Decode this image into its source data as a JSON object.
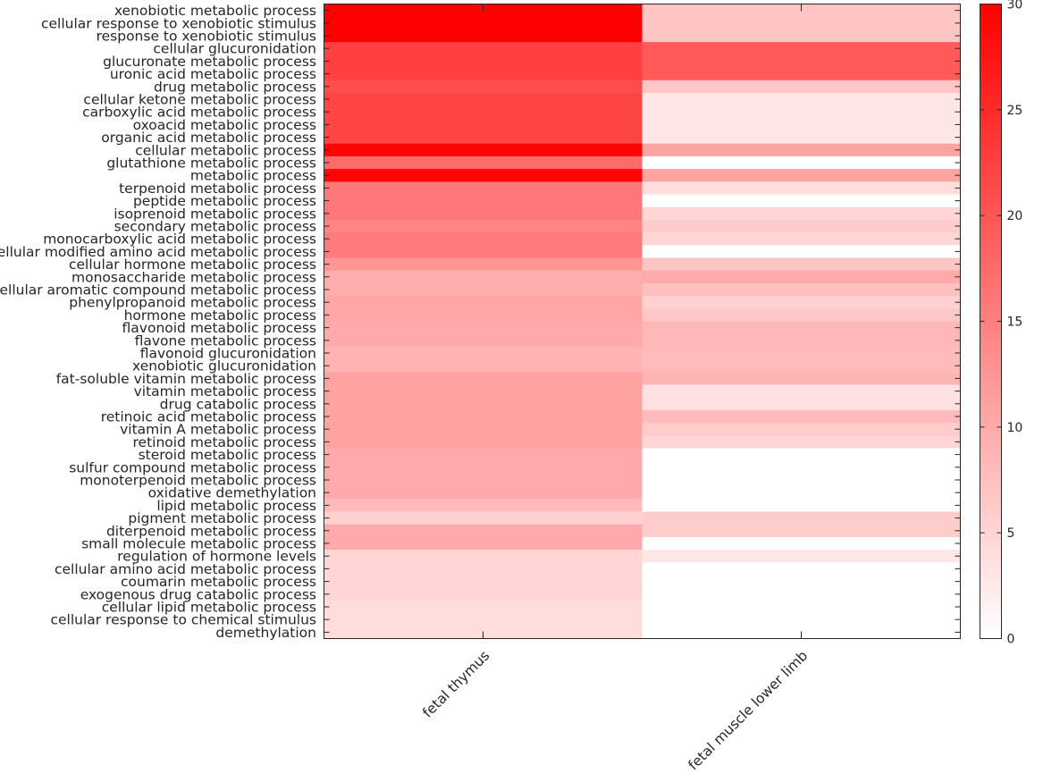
{
  "chart_data": {
    "type": "heatmap",
    "columns": [
      "fetal thymus",
      "fetal muscle lower limb"
    ],
    "rows": [
      "xenobiotic metabolic process",
      "cellular response to xenobiotic stimulus",
      "response to xenobiotic stimulus",
      "cellular glucuronidation",
      "glucuronate metabolic process",
      "uronic acid metabolic process",
      "drug metabolic process",
      "cellular ketone metabolic process",
      "carboxylic acid metabolic process",
      "oxoacid metabolic process",
      "organic acid metabolic process",
      "cellular metabolic process",
      "glutathione metabolic process",
      "metabolic process",
      "terpenoid metabolic process",
      "peptide metabolic process",
      "isoprenoid metabolic process",
      "secondary metabolic process",
      "monocarboxylic acid metabolic process",
      "cellular modified amino acid metabolic process",
      "cellular hormone metabolic process",
      "monosaccharide metabolic process",
      "cellular aromatic compound metabolic process",
      "phenylpropanoid metabolic process",
      "hormone metabolic process",
      "flavonoid metabolic process",
      "flavone metabolic process",
      "flavonoid glucuronidation",
      "xenobiotic glucuronidation",
      "fat-soluble vitamin metabolic process",
      "vitamin metabolic process",
      "drug catabolic process",
      "retinoic acid metabolic process",
      "vitamin A metabolic process",
      "retinoid metabolic process",
      "steroid metabolic process",
      "sulfur compound metabolic process",
      "monoterpenoid metabolic process",
      "oxidative demethylation",
      "lipid metabolic process",
      "pigment metabolic process",
      "diterpenoid metabolic process",
      "small molecule metabolic process",
      "regulation of hormone levels",
      "cellular amino acid metabolic process",
      "coumarin metabolic process",
      "exogenous drug catabolic process",
      "cellular lipid metabolic process",
      "cellular response to chemical stimulus",
      "demethylation"
    ],
    "values": [
      [
        30,
        7
      ],
      [
        30,
        7
      ],
      [
        30,
        7
      ],
      [
        22.5,
        19.5
      ],
      [
        22.5,
        19.5
      ],
      [
        22.5,
        19.5
      ],
      [
        21,
        7
      ],
      [
        22,
        3
      ],
      [
        22,
        3
      ],
      [
        22,
        3
      ],
      [
        22,
        3
      ],
      [
        29.5,
        11
      ],
      [
        17.5,
        0
      ],
      [
        29.5,
        11
      ],
      [
        16,
        4
      ],
      [
        16,
        0
      ],
      [
        16,
        5
      ],
      [
        14.5,
        6
      ],
      [
        15.5,
        5
      ],
      [
        15.5,
        0
      ],
      [
        12.5,
        7
      ],
      [
        9.5,
        10
      ],
      [
        9.5,
        7.5
      ],
      [
        10.5,
        5.5
      ],
      [
        10.5,
        6.5
      ],
      [
        10,
        8.5
      ],
      [
        10,
        8.5
      ],
      [
        9,
        8
      ],
      [
        9,
        8
      ],
      [
        11,
        9
      ],
      [
        11,
        3.5
      ],
      [
        11,
        3.5
      ],
      [
        11,
        8
      ],
      [
        11,
        6
      ],
      [
        11,
        5
      ],
      [
        10,
        0
      ],
      [
        10,
        0
      ],
      [
        10,
        0
      ],
      [
        10,
        0
      ],
      [
        8,
        0
      ],
      [
        5.5,
        6
      ],
      [
        10,
        6
      ],
      [
        10,
        0
      ],
      [
        5,
        3
      ],
      [
        5,
        0
      ],
      [
        5,
        0
      ],
      [
        5,
        0
      ],
      [
        4,
        0
      ],
      [
        4,
        0
      ],
      [
        4,
        0
      ]
    ],
    "colorbar": {
      "min": 0,
      "max": 30,
      "ticks": [
        0,
        5,
        10,
        15,
        20,
        25,
        30
      ],
      "low_color": "#ffffff",
      "high_color": "#ff0000"
    }
  }
}
